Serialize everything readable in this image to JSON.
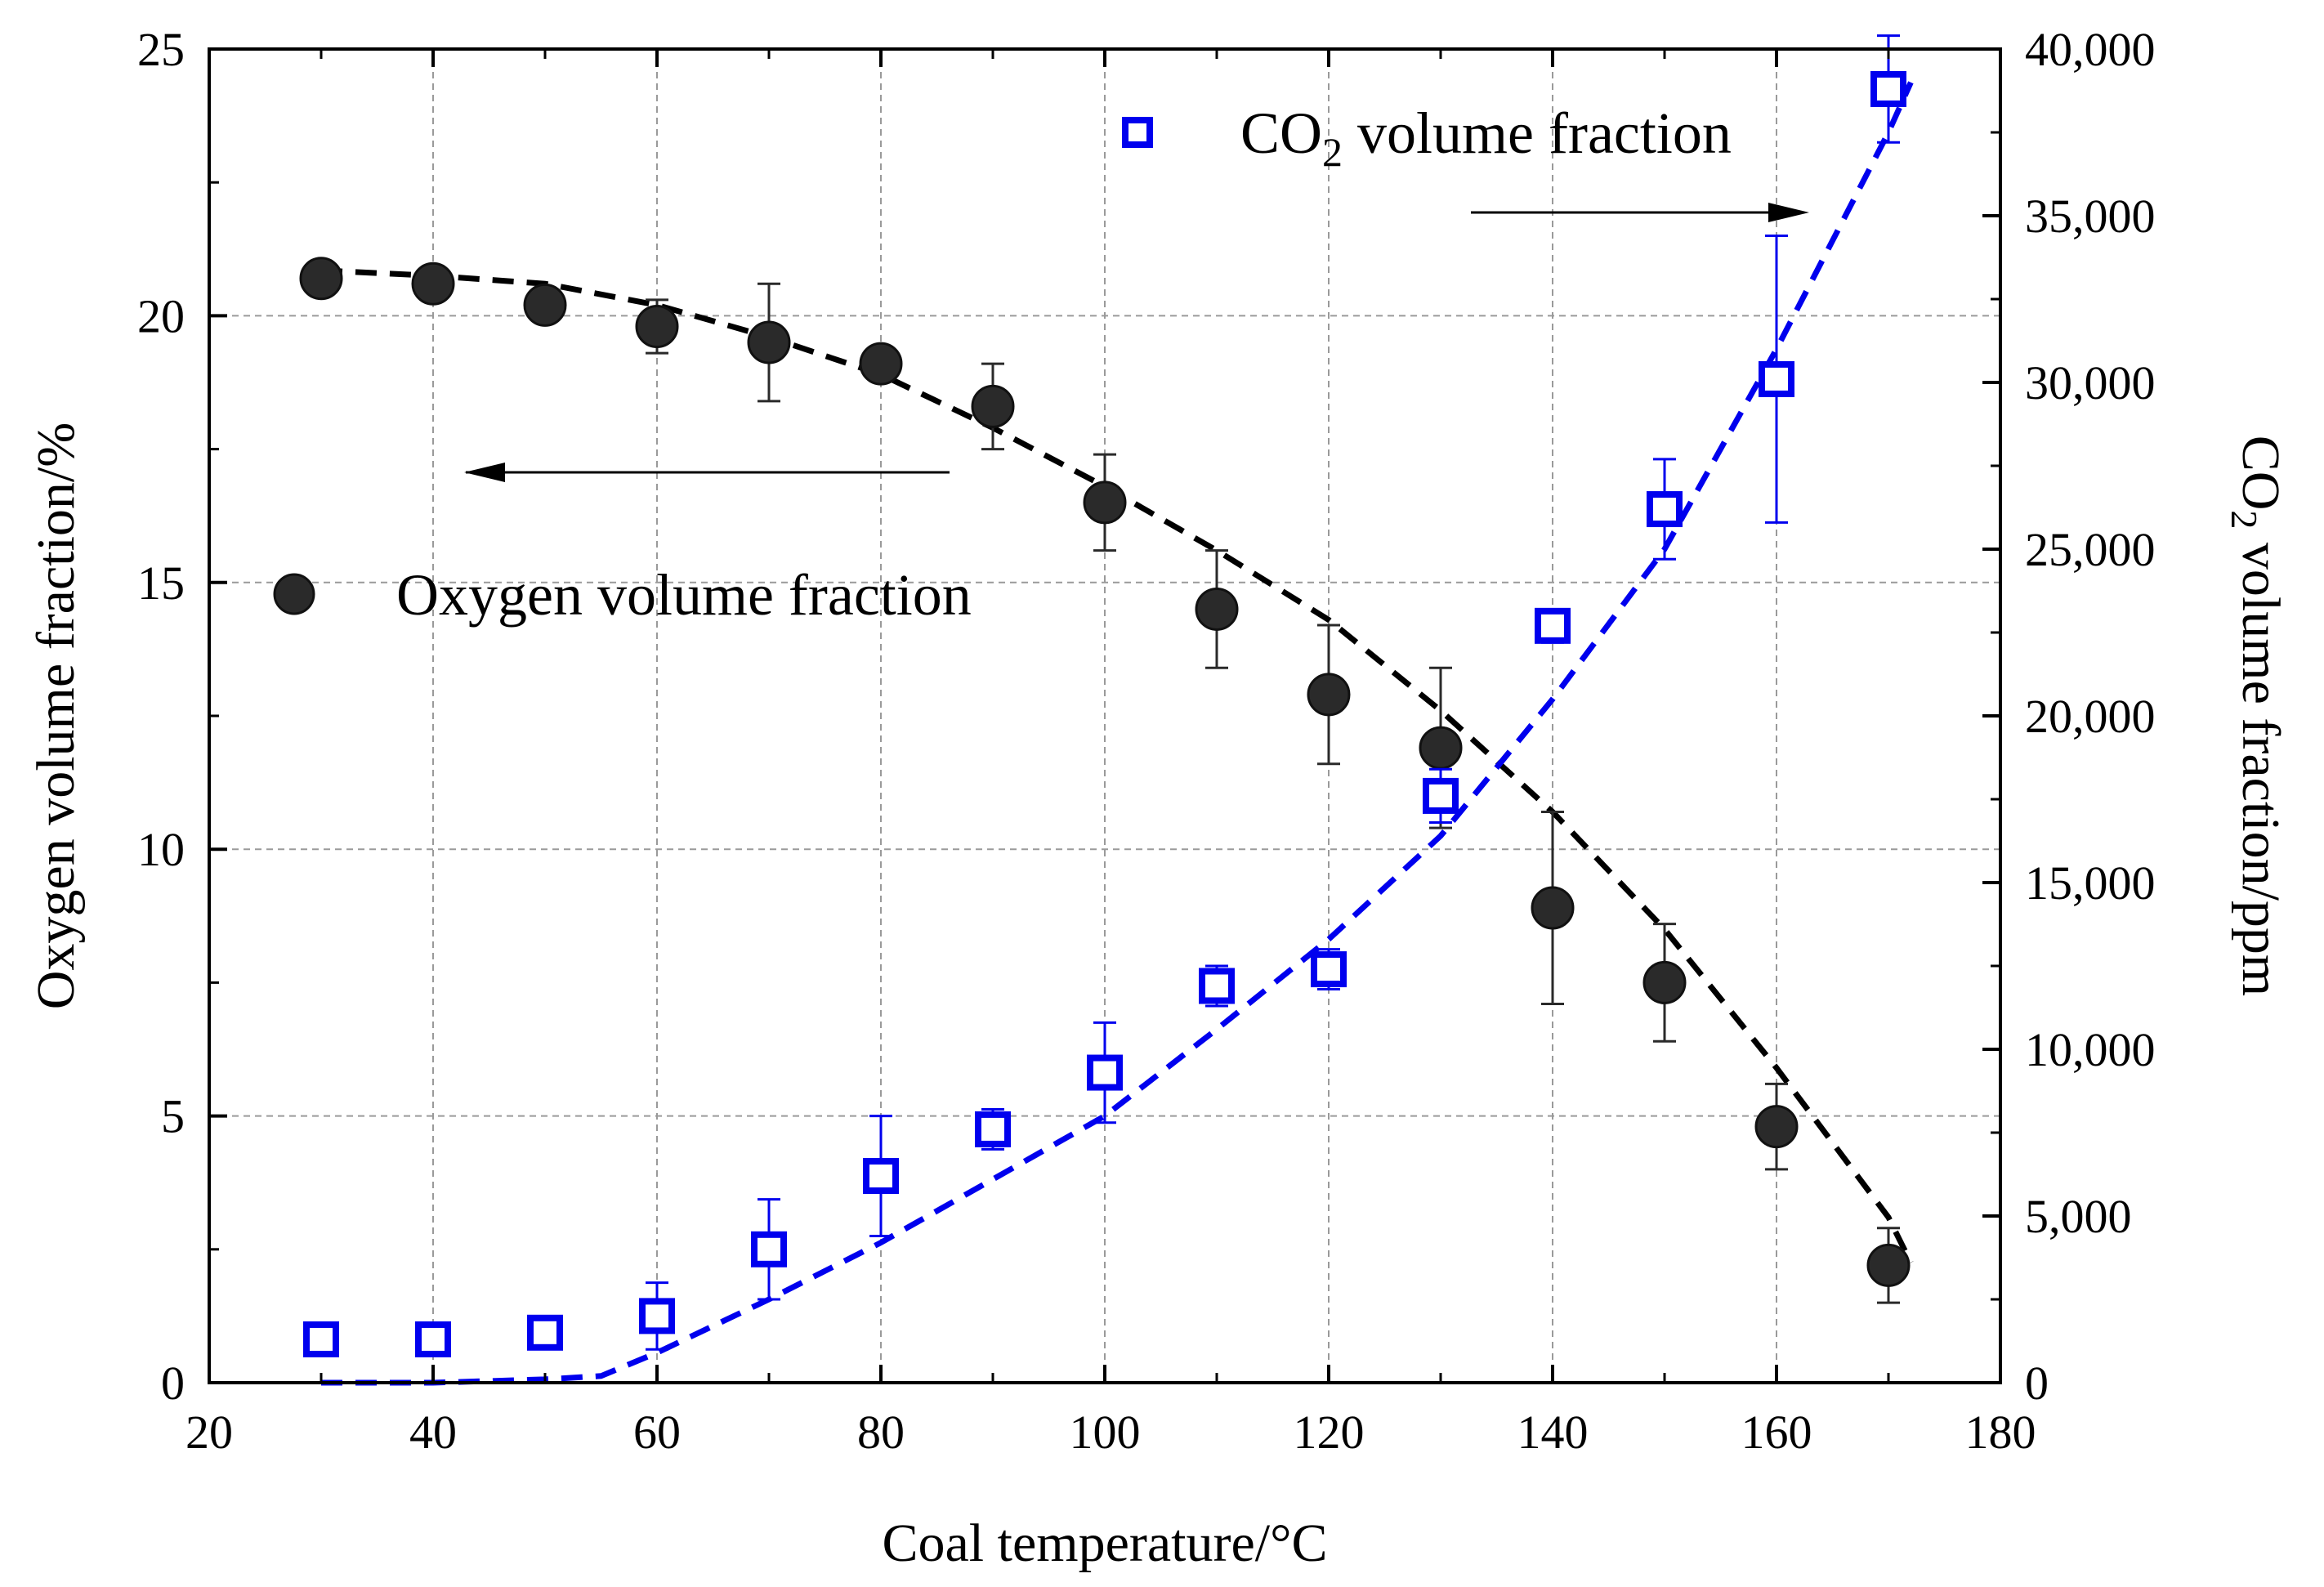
{
  "chart_data": {
    "type": "scatter",
    "xlabel": "Coal temperature/°C",
    "ylabel_left": "Oxygen volume fraction/%",
    "ylabel_right_parts": [
      "CO",
      "2",
      " volume fraction/ppm"
    ],
    "xlim": [
      20,
      180
    ],
    "ylim_left": [
      0,
      25
    ],
    "ylim_right": [
      0,
      40000
    ],
    "xticks": [
      20,
      40,
      60,
      80,
      100,
      120,
      140,
      160,
      180
    ],
    "xtick_labels": [
      "20",
      "40",
      "60",
      "80",
      "100",
      "120",
      "140",
      "160",
      "180"
    ],
    "yticks_left": [
      0,
      5,
      10,
      15,
      20,
      25
    ],
    "ytick_labels_left": [
      "0",
      "5",
      "10",
      "15",
      "20",
      "25"
    ],
    "yticks_right": [
      0,
      5000,
      10000,
      15000,
      20000,
      25000,
      30000,
      35000,
      40000
    ],
    "ytick_labels_right": [
      "0",
      "5,000",
      "10,000",
      "15,000",
      "20,000",
      "25,000",
      "30,000",
      "35,000",
      "40,000"
    ],
    "grid": true,
    "series": [
      {
        "name": "Oxygen volume fraction",
        "axis": "left",
        "marker": "filled-circle",
        "color": "#2a2a2a",
        "x": [
          30,
          40,
          50,
          60,
          70,
          80,
          90,
          100,
          110,
          120,
          130,
          140,
          150,
          160,
          170
        ],
        "y": [
          20.7,
          20.6,
          20.2,
          19.8,
          19.5,
          19.1,
          18.3,
          16.5,
          14.5,
          12.9,
          11.9,
          8.9,
          7.5,
          4.8,
          2.2
        ],
        "err": [
          0.15,
          0.15,
          0.15,
          0.5,
          1.1,
          0.15,
          0.8,
          0.9,
          1.1,
          1.3,
          1.5,
          1.8,
          1.1,
          0.8,
          0.7
        ]
      },
      {
        "name": "CO2 volume fraction",
        "axis": "right",
        "marker": "open-square",
        "color": "#0000ee",
        "x": [
          30,
          40,
          50,
          60,
          70,
          80,
          90,
          100,
          110,
          120,
          130,
          140,
          150,
          160,
          170
        ],
        "y": [
          1300,
          1300,
          1500,
          2000,
          4000,
          6200,
          7600,
          9300,
          11900,
          12400,
          17600,
          22700,
          26200,
          30100,
          38800
        ],
        "err": [
          100,
          100,
          100,
          1000,
          1500,
          1800,
          600,
          1500,
          600,
          600,
          800,
          500,
          1500,
          4300,
          1600
        ]
      }
    ],
    "fits": [
      {
        "series": "Oxygen volume fraction",
        "style": "dashed",
        "color": "#000000",
        "x": [
          30,
          40,
          50,
          60,
          70,
          80,
          90,
          100,
          110,
          120,
          130,
          140,
          150,
          160,
          170,
          172
        ],
        "y": [
          20.85,
          20.75,
          20.6,
          20.2,
          19.6,
          18.9,
          17.9,
          16.8,
          15.6,
          14.3,
          12.6,
          10.7,
          8.5,
          5.9,
          3.1,
          2.25
        ]
      },
      {
        "series": "CO2 volume fraction",
        "style": "dashed",
        "color": "#0000ee",
        "x": [
          30,
          40,
          50,
          55,
          60,
          70,
          80,
          90,
          100,
          110,
          120,
          130,
          140,
          150,
          160,
          170,
          172
        ],
        "y": [
          0,
          0,
          100,
          200,
          900,
          2500,
          4200,
          6100,
          8000,
          10600,
          13300,
          16400,
          20500,
          25000,
          31000,
          37500,
          39000
        ]
      }
    ],
    "legend": [
      {
        "marker": "filled-circle",
        "label": "Oxygen volume fraction"
      },
      {
        "marker": "open-square",
        "label_parts": [
          "CO",
          "2",
          " volume fraction"
        ]
      }
    ],
    "annotations": [
      {
        "type": "arrow",
        "direction": "left",
        "meaning": "oxygen series uses left axis"
      },
      {
        "type": "arrow",
        "direction": "right",
        "meaning": "CO2 series uses right axis"
      }
    ]
  }
}
